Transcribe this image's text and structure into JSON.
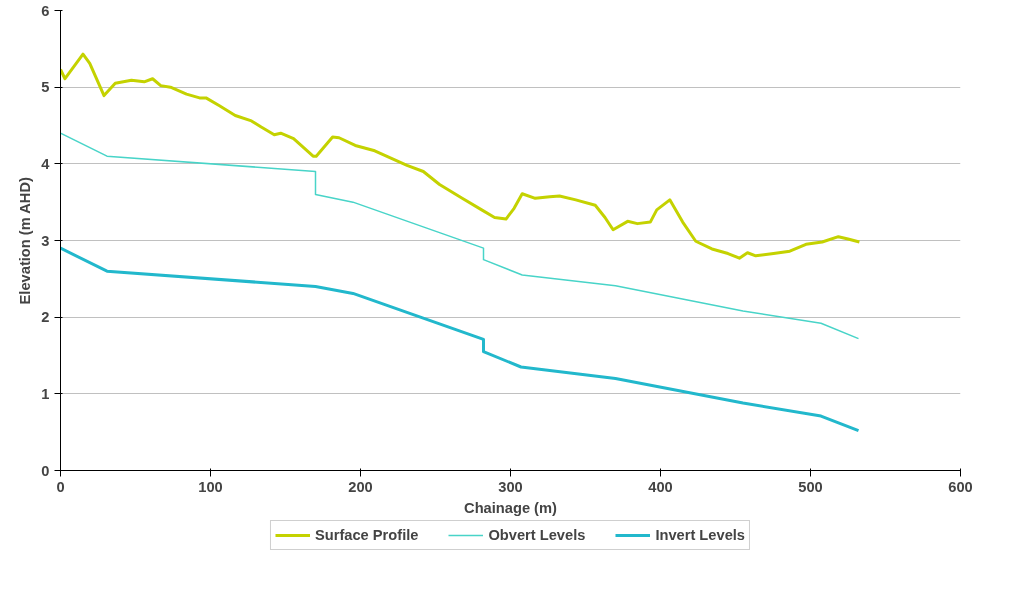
{
  "chart_data": {
    "type": "line",
    "xlabel": "Chainage (m)",
    "ylabel": "Elevation (m AHD)",
    "xlim": [
      0,
      600
    ],
    "ylim": [
      0,
      6
    ],
    "xticks": [
      0,
      100,
      200,
      300,
      400,
      500,
      600
    ],
    "yticks": [
      0,
      1,
      2,
      3,
      4,
      5,
      6
    ],
    "grid": "y",
    "legend": "bottom",
    "marker": "none",
    "line_style": "solid",
    "series": [
      {
        "name": "Surface Profile",
        "color": "#c4d200",
        "x": [
          0,
          3,
          15,
          19.5,
          29,
          36.5,
          47.3,
          55.8,
          61.4,
          66.8,
          73.3,
          84,
          92.7,
          97,
          105.7,
          116.5,
          127.3,
          133.8,
          142.5,
          146.8,
          155.4,
          168.4,
          170.5,
          181.4,
          185.7,
          196.5,
          209.5,
          231,
          241.9,
          252.7,
          267.8,
          280.8,
          289.4,
          297,
          302.4,
          307.8,
          316.5,
          326.2,
          332.7,
          343.5,
          356.5,
          363,
          368.4,
          378.1,
          384.6,
          393.2,
          397.5,
          406.2,
          414.8,
          423.5,
          434.3,
          445,
          452.6,
          458,
          463.5,
          475.4,
          486.2,
          497,
          507.8,
          518.6,
          525,
          532.6
        ],
        "values": [
          5.23,
          5.11,
          5.43,
          5.31,
          4.89,
          5.05,
          5.09,
          5.07,
          5.11,
          5.02,
          5.0,
          4.91,
          4.86,
          4.86,
          4.76,
          4.63,
          4.56,
          4.48,
          4.38,
          4.4,
          4.33,
          4.1,
          4.1,
          4.35,
          4.34,
          4.24,
          4.17,
          3.98,
          3.9,
          3.73,
          3.55,
          3.4,
          3.3,
          3.28,
          3.42,
          3.61,
          3.55,
          3.57,
          3.58,
          3.53,
          3.46,
          3.3,
          3.14,
          3.25,
          3.22,
          3.24,
          3.4,
          3.53,
          3.24,
          2.99,
          2.89,
          2.83,
          2.77,
          2.84,
          2.8,
          2.83,
          2.86,
          2.95,
          2.98,
          3.05,
          3.02,
          2.98
        ]
      },
      {
        "name": "Obvert Levels",
        "color": "#48d4c8",
        "x": [
          0,
          31,
          170,
          170,
          195,
          282,
          282,
          307.8,
          370,
          455,
          507,
          532
        ],
        "values": [
          4.4,
          4.1,
          3.9,
          3.6,
          3.5,
          2.9,
          2.75,
          2.55,
          2.41,
          2.08,
          1.92,
          1.72
        ]
      },
      {
        "name": "Invert Levels",
        "color": "#22b8cc",
        "x": [
          0,
          31,
          170,
          195,
          282,
          282,
          307,
          370,
          455,
          507,
          532
        ],
        "values": [
          2.9,
          2.6,
          2.4,
          2.31,
          1.71,
          1.55,
          1.35,
          1.2,
          0.88,
          0.71,
          0.52
        ]
      }
    ]
  }
}
